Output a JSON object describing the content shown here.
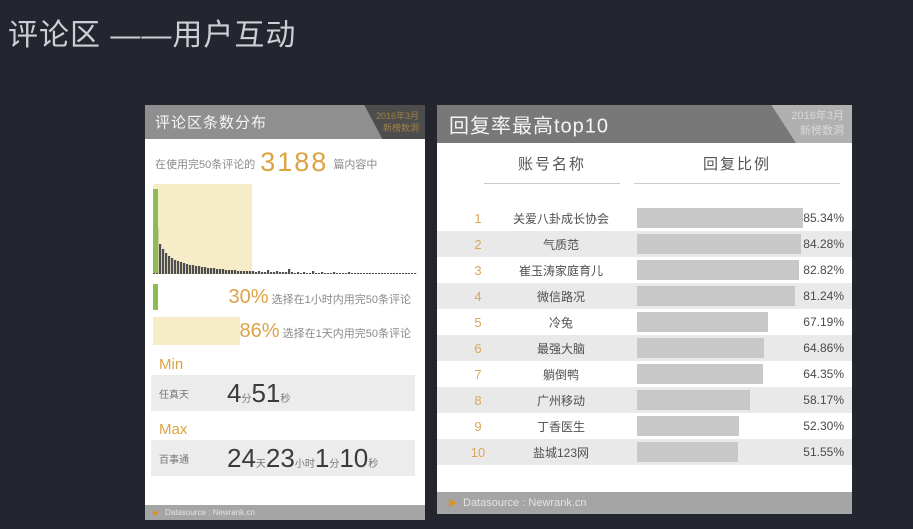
{
  "page": {
    "title": "评论区 ——用户互动",
    "background": "#23262e",
    "accent_orange": "#dda343"
  },
  "left_panel": {
    "title": "评论区条数分布",
    "badge": {
      "line1": "2016年3月",
      "line2": "新榜数洞"
    },
    "intro": {
      "prefix": "在使用完50条评论的",
      "count": "3188",
      "suffix": "篇内容中"
    },
    "legend": [
      {
        "swatch": "green",
        "percent": "30%",
        "label": "选择在1小时内用完50条评论",
        "color": "#8cbd54"
      },
      {
        "swatch": "beige",
        "percent": "86%",
        "label": "选择在1天内用完50条评论",
        "color": "#f6ecc8"
      }
    ],
    "min": {
      "label": "Min",
      "account": "任真天",
      "parts": [
        {
          "num": "4",
          "unit": "分"
        },
        {
          "num": "51",
          "unit": "秒"
        }
      ]
    },
    "max": {
      "label": "Max",
      "account": "百事通",
      "parts": [
        {
          "num": "24",
          "unit": "天"
        },
        {
          "num": "23",
          "unit": "小时"
        },
        {
          "num": "1",
          "unit": "分"
        },
        {
          "num": "10",
          "unit": "秒"
        }
      ]
    },
    "footer": "Datasource : Newrank.cn"
  },
  "right_panel": {
    "title": "回复率最高top10",
    "badge": {
      "line1": "2016年3月",
      "line2": "新榜数洞"
    },
    "columns": {
      "name": "账号名称",
      "ratio": "回复比例"
    },
    "rows": [
      {
        "rank": "1",
        "name": "关爱八卦成长协会",
        "value": 85.34,
        "percent": "85.34%"
      },
      {
        "rank": "2",
        "name": "气质范",
        "value": 84.28,
        "percent": "84.28%"
      },
      {
        "rank": "3",
        "name": "崔玉涛家庭育儿",
        "value": 82.82,
        "percent": "82.82%"
      },
      {
        "rank": "4",
        "name": "微信路况",
        "value": 81.24,
        "percent": "81.24%"
      },
      {
        "rank": "5",
        "name": "冷兔",
        "value": 67.19,
        "percent": "67.19%"
      },
      {
        "rank": "6",
        "name": "最强大脑",
        "value": 64.86,
        "percent": "64.86%"
      },
      {
        "rank": "7",
        "name": "躺倒鸭",
        "value": 64.35,
        "percent": "64.35%"
      },
      {
        "rank": "8",
        "name": "广州移动",
        "value": 58.17,
        "percent": "58.17%"
      },
      {
        "rank": "9",
        "name": "丁香医生",
        "value": 52.3,
        "percent": "52.30%"
      },
      {
        "rank": "10",
        "name": "盐城123网",
        "value": 51.55,
        "percent": "51.55%"
      }
    ],
    "footer": "Datasource : Newrank.cn"
  },
  "chart_data": [
    {
      "type": "bar",
      "title": "评论区条数分布",
      "subtitle": "在使用完50条评论的3188篇内容中",
      "total_articles": 3188,
      "shape": "long-tail decaying histogram of time to use up 50 comments",
      "highlight_region_label": "1天内 (beige highlight over left portion)",
      "first_bar_label": "1小时内 (green bar)",
      "annotations": [
        {
          "value": "30%",
          "label": "选择在1小时内用完50条评论",
          "color": "#8cbd54"
        },
        {
          "value": "86%",
          "label": "选择在1天内用完50条评论",
          "color": "#f6ecc8"
        }
      ],
      "min": {
        "account": "任真天",
        "time": "4分51秒"
      },
      "max": {
        "account": "百事通",
        "time": "24天23小时1分10秒"
      },
      "histogram_profile": [
        34,
        46,
        30,
        25,
        21,
        18,
        16,
        14,
        13,
        12,
        11,
        10,
        9,
        9,
        8,
        8,
        7,
        7,
        6,
        6,
        6,
        5,
        5,
        5,
        4,
        4,
        4,
        4,
        3,
        3,
        3,
        3,
        3,
        3,
        2,
        3,
        2,
        2,
        4,
        2,
        2,
        3,
        2,
        2,
        2,
        5,
        2,
        1,
        2,
        1,
        2,
        1,
        1,
        3,
        1,
        1,
        2,
        1,
        1,
        1,
        2,
        1,
        1,
        1,
        1,
        2,
        1,
        1,
        1,
        1,
        1,
        1,
        1,
        1,
        1,
        1,
        1,
        1,
        1,
        1,
        1,
        1,
        1,
        1,
        1,
        1,
        1,
        1
      ]
    },
    {
      "type": "bar",
      "title": "回复率最高top10",
      "orientation": "horizontal",
      "categories": [
        "关爱八卦成长协会",
        "气质范",
        "崔玉涛家庭育儿",
        "微信路况",
        "冷兔",
        "最强大脑",
        "躺倒鸭",
        "广州移动",
        "丁香医生",
        "盐城123网"
      ],
      "values": [
        85.34,
        84.28,
        82.82,
        81.24,
        67.19,
        64.86,
        64.35,
        58.17,
        52.3,
        51.55
      ],
      "unit": "%",
      "xlabel": "回复比例",
      "ylabel": "账号名称",
      "xlim": [
        0,
        100
      ]
    }
  ]
}
